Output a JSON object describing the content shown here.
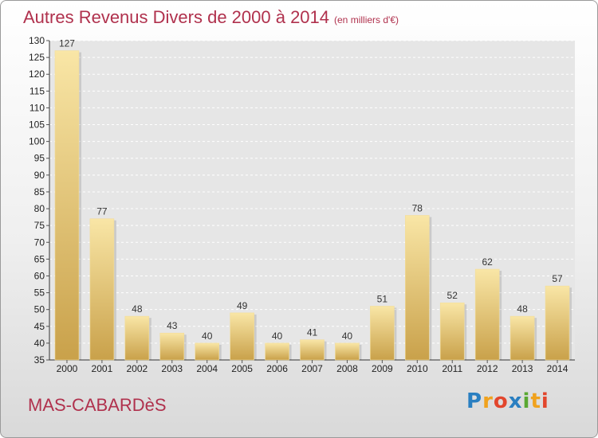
{
  "title": "Autres Revenus Divers de 2000 à 2014",
  "subtitle": "(en milliers d'€)",
  "place": "MAS-CABARDèS",
  "logo": {
    "letters": [
      "P",
      "r",
      "o",
      "x",
      "i",
      "t",
      "i"
    ],
    "colors": [
      "#2a7fc1",
      "#f0a21e",
      "#e2462d",
      "#2a7fc1",
      "#59a832",
      "#f0a21e",
      "#e2462d"
    ]
  },
  "colors": {
    "title": "#b0314d",
    "bar_top": "#f9e6a6",
    "bar_bottom": "#c9a14a"
  },
  "chart_data": {
    "type": "bar",
    "categories": [
      "2000",
      "2001",
      "2002",
      "2003",
      "2004",
      "2005",
      "2006",
      "2007",
      "2008",
      "2009",
      "2010",
      "2011",
      "2012",
      "2013",
      "2014"
    ],
    "values": [
      127,
      77,
      48,
      43,
      40,
      49,
      40,
      41,
      40,
      51,
      78,
      52,
      62,
      48,
      57
    ],
    "title": "Autres Revenus Divers de 2000 à 2014",
    "subtitle": "(en milliers d'€)",
    "xlabel": "",
    "ylabel": "",
    "ylim": [
      35,
      130
    ],
    "yticks": [
      35,
      40,
      45,
      50,
      55,
      60,
      65,
      70,
      75,
      80,
      85,
      90,
      95,
      100,
      105,
      110,
      115,
      120,
      125,
      130
    ],
    "grid": true,
    "data_labels": true
  }
}
